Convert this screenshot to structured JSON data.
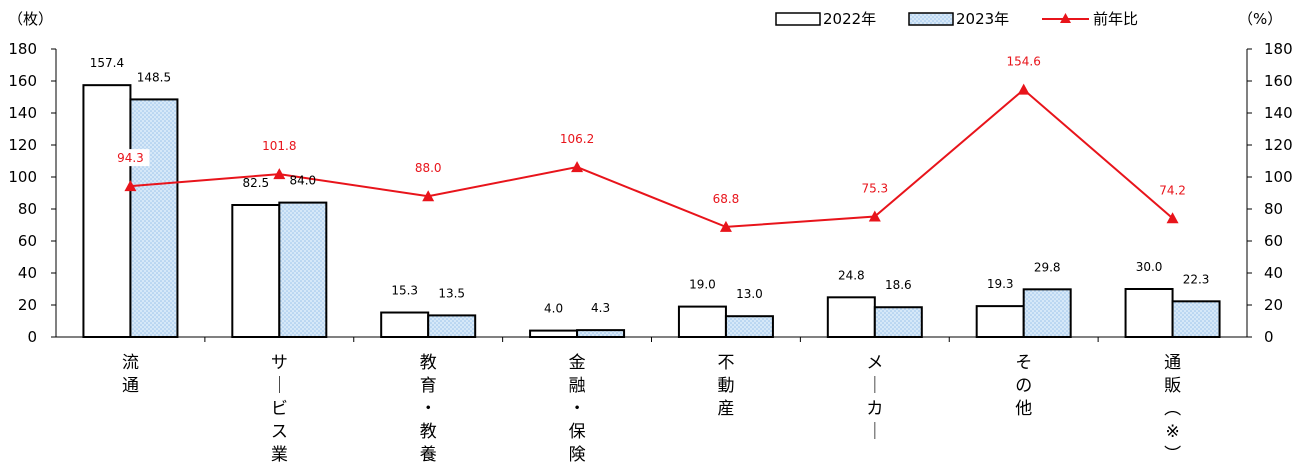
{
  "chart_data": {
    "type": "bar",
    "categories": [
      "流通",
      "サービス業",
      "教育・教養",
      "金融・保険",
      "不動産",
      "メーカー",
      "その他",
      "通販（※）"
    ],
    "series": [
      {
        "name": "2022年",
        "type": "bar",
        "axis": "left",
        "values": [
          157.4,
          82.5,
          15.3,
          4.0,
          19.0,
          24.8,
          19.3,
          30.0
        ]
      },
      {
        "name": "2023年",
        "type": "bar",
        "axis": "left",
        "values": [
          148.5,
          84.0,
          13.5,
          4.3,
          13.0,
          18.6,
          29.8,
          22.3
        ]
      },
      {
        "name": "前年比",
        "type": "line",
        "axis": "right",
        "values": [
          94.3,
          101.8,
          88.0,
          106.2,
          68.8,
          75.3,
          154.6,
          74.2
        ]
      }
    ],
    "y_left": {
      "unit": "（枚）",
      "ylim": [
        0,
        180
      ],
      "ticks": [
        0,
        20,
        40,
        60,
        80,
        100,
        120,
        140,
        160,
        180
      ]
    },
    "y_right": {
      "unit": "（%）",
      "ylim": [
        0,
        180
      ],
      "ticks": [
        0,
        20,
        40,
        60,
        80,
        100,
        120,
        140,
        160,
        180
      ]
    },
    "legend": {
      "placement": "top-right"
    },
    "grid": false,
    "colors": {
      "bar2022_fill": "#ffffff",
      "bar2023_fill": "#cfe3f7",
      "bar2023_dot": "#9cc3ea",
      "line": "#e8141b",
      "line_label": "#e8141b",
      "axis": "#000000"
    }
  }
}
